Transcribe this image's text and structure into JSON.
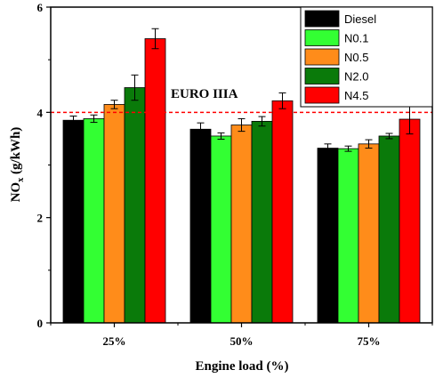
{
  "chart_data": {
    "type": "bar",
    "categories": [
      "25%",
      "50%",
      "75%"
    ],
    "series": [
      {
        "name": "Diesel",
        "color": "#000000",
        "values": [
          3.85,
          3.68,
          3.32
        ],
        "errors": [
          0.08,
          0.12,
          0.08
        ]
      },
      {
        "name": "N0.1",
        "color": "#33ff33",
        "values": [
          3.88,
          3.55,
          3.31
        ],
        "errors": [
          0.07,
          0.06,
          0.05
        ]
      },
      {
        "name": "N0.5",
        "color": "#ff8c1a",
        "values": [
          4.15,
          3.76,
          3.4
        ],
        "errors": [
          0.08,
          0.12,
          0.08
        ]
      },
      {
        "name": "N2.0",
        "color": "#0a7a0a",
        "values": [
          4.47,
          3.83,
          3.55
        ],
        "errors": [
          0.24,
          0.09,
          0.05
        ]
      },
      {
        "name": "N4.5",
        "color": "#ff0000",
        "values": [
          5.4,
          4.22,
          3.87
        ],
        "errors": [
          0.19,
          0.15,
          0.28
        ]
      }
    ],
    "xlabel": "Engine load (%)",
    "ylabel_main": "NO",
    "ylabel_sub": "x",
    "ylabel_unit": " (g/kWh)",
    "ylim": [
      0,
      6
    ],
    "yticks": [
      0,
      2,
      4,
      6
    ],
    "reference_line": {
      "label": "EURO IIIA",
      "value": 4.0,
      "color": "#ff0000"
    },
    "legend_position": "top-right",
    "grid": false
  }
}
